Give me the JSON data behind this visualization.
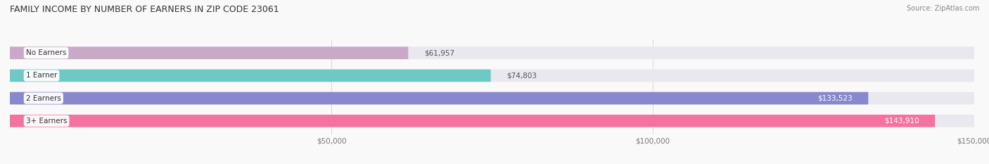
{
  "title": "FAMILY INCOME BY NUMBER OF EARNERS IN ZIP CODE 23061",
  "source": "Source: ZipAtlas.com",
  "categories": [
    "No Earners",
    "1 Earner",
    "2 Earners",
    "3+ Earners"
  ],
  "values": [
    61957,
    74803,
    133523,
    143910
  ],
  "bar_colors": [
    "#c9a8c8",
    "#6dc9c4",
    "#8888cc",
    "#f572a0"
  ],
  "bar_bg_color": "#e8e8ee",
  "x_min": 0,
  "x_max": 150000,
  "x_ticks": [
    50000,
    100000,
    150000
  ],
  "x_tick_labels": [
    "$50,000",
    "$100,000",
    "$150,000"
  ],
  "figsize": [
    14.06,
    2.33
  ],
  "dpi": 100,
  "title_fontsize": 9,
  "bar_label_fontsize": 7.5,
  "category_fontsize": 7.5,
  "source_fontsize": 7,
  "tick_fontsize": 7.5
}
